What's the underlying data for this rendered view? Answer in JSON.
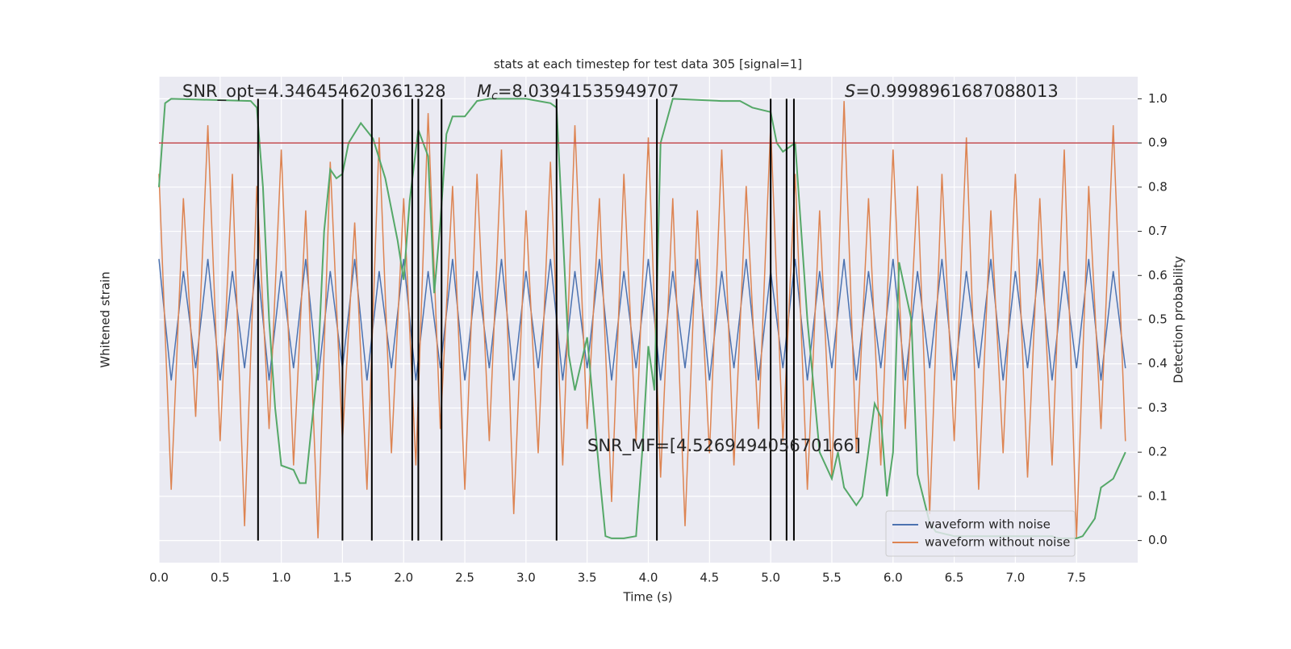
{
  "chart_data": {
    "type": "line",
    "title": "stats at each timestep for test data 305 [signal=1]",
    "xlabel": "Time (s)",
    "ylabel": "Whitened strain",
    "y2label": "Detection probability",
    "xlim": [
      0,
      8.0
    ],
    "xticks": [
      {
        "value": 0,
        "label": "0.0"
      },
      0.5,
      {
        "value": 1,
        "label": "1.0"
      },
      1.5,
      {
        "value": 2,
        "label": "2.0"
      },
      2.5,
      {
        "value": 3,
        "label": "3.0"
      },
      3.5,
      {
        "value": 4,
        "label": "4.0"
      },
      4.5,
      {
        "value": 5,
        "label": "5.0"
      },
      5.5,
      {
        "value": 6,
        "label": "6.0"
      },
      6.5,
      {
        "value": 7,
        "label": "7.0"
      },
      7.5
    ],
    "ylim": [
      -1,
      1
    ],
    "y2lim": [
      -0.05,
      1.05
    ],
    "y2ticks": [
      {
        "value": 0,
        "label": "0.0"
      },
      0.1,
      0.2,
      0.3,
      0.4,
      0.5,
      0.6,
      0.7,
      0.8,
      0.9,
      {
        "value": 1,
        "label": "1.0"
      }
    ],
    "grid": true,
    "legend": "lower right",
    "x": [
      0,
      0.1,
      0.2,
      0.3,
      0.4,
      0.5,
      0.6,
      0.7,
      0.8,
      0.9,
      1.0,
      1.1,
      1.2,
      1.3,
      1.4,
      1.5,
      1.6,
      1.7,
      1.8,
      1.9,
      2.0,
      2.1,
      2.2,
      2.3,
      2.4,
      2.5,
      2.6,
      2.7,
      2.8,
      2.9,
      3.0,
      3.1,
      3.2,
      3.3,
      3.4,
      3.5,
      3.6,
      3.7,
      3.8,
      3.9,
      4.0,
      4.1,
      4.2,
      4.3,
      4.4,
      4.5,
      4.6,
      4.7,
      4.8,
      4.9,
      5.0,
      5.1,
      5.2,
      5.3,
      5.4,
      5.5,
      5.6,
      5.7,
      5.8,
      5.9,
      6.0,
      6.1,
      6.2,
      6.3,
      6.4,
      6.5,
      6.6,
      6.7,
      6.8,
      6.9,
      7.0,
      7.1,
      7.2,
      7.3,
      7.4,
      7.5,
      7.6,
      7.7,
      7.8,
      7.9
    ],
    "series": [
      {
        "name": "waveform with noise",
        "color": "#4c72b0",
        "axis": "y",
        "values": [
          0.25,
          -0.25,
          0.2,
          -0.2,
          0.25,
          -0.25,
          0.2,
          -0.2,
          0.25,
          -0.25,
          0.2,
          -0.2,
          0.25,
          -0.25,
          0.2,
          -0.2,
          0.25,
          -0.25,
          0.2,
          -0.2,
          0.25,
          -0.25,
          0.2,
          -0.2,
          0.25,
          -0.25,
          0.2,
          -0.2,
          0.25,
          -0.25,
          0.2,
          -0.2,
          0.25,
          -0.25,
          0.2,
          -0.2,
          0.25,
          -0.25,
          0.2,
          -0.2,
          0.25,
          -0.25,
          0.2,
          -0.2,
          0.25,
          -0.25,
          0.2,
          -0.2,
          0.25,
          -0.25,
          0.2,
          -0.2,
          0.25,
          -0.25,
          0.2,
          -0.2,
          0.25,
          -0.25,
          0.2,
          -0.2,
          0.25,
          -0.25,
          0.2,
          -0.2,
          0.25,
          -0.25,
          0.2,
          -0.2,
          0.25,
          -0.25,
          0.2,
          -0.2,
          0.25,
          -0.25,
          0.2,
          -0.2,
          0.25,
          -0.25,
          0.2,
          -0.2
        ]
      },
      {
        "name": "waveform without noise",
        "color": "#dd8452",
        "axis": "y",
        "values": [
          0.6,
          -0.7,
          0.5,
          -0.4,
          0.8,
          -0.5,
          0.6,
          -0.85,
          0.55,
          -0.45,
          0.7,
          -0.6,
          0.45,
          -0.9,
          0.65,
          -0.5,
          0.4,
          -0.7,
          0.75,
          -0.55,
          0.5,
          -0.6,
          0.85,
          -0.45,
          0.55,
          -0.7,
          0.6,
          -0.5,
          0.7,
          -0.8,
          0.45,
          -0.55,
          0.65,
          -0.6,
          0.8,
          -0.45,
          0.5,
          -0.75,
          0.6,
          -0.5,
          0.75,
          -0.65,
          0.5,
          -0.85,
          0.45,
          -0.55,
          0.7,
          -0.6,
          0.55,
          -0.45,
          0.8,
          -0.5,
          0.6,
          -0.7,
          0.45,
          -0.65,
          0.9,
          -0.55,
          0.5,
          -0.6,
          0.7,
          -0.45,
          0.55,
          -0.8,
          0.6,
          -0.5,
          0.75,
          -0.7,
          0.45,
          -0.55,
          0.6,
          -0.65,
          0.5,
          -0.6,
          0.7,
          -0.9,
          0.55,
          -0.45,
          0.8,
          -0.5
        ]
      },
      {
        "color": "#55a868",
        "axis": "y2",
        "x": [
          0,
          0.05,
          0.1,
          0.75,
          0.8,
          0.85,
          0.9,
          0.95,
          1.0,
          1.1,
          1.15,
          1.2,
          1.3,
          1.35,
          1.4,
          1.45,
          1.5,
          1.55,
          1.65,
          1.75,
          1.85,
          1.95,
          2.0,
          2.05,
          2.12,
          2.2,
          2.25,
          2.3,
          2.35,
          2.4,
          2.5,
          2.6,
          2.7,
          3.0,
          3.2,
          3.25,
          3.3,
          3.35,
          3.4,
          3.45,
          3.5,
          3.6,
          3.65,
          3.7,
          3.8,
          3.9,
          3.95,
          4.0,
          4.05,
          4.1,
          4.2,
          4.6,
          4.75,
          4.85,
          5.0,
          5.05,
          5.1,
          5.2,
          5.3,
          5.4,
          5.5,
          5.55,
          5.6,
          5.7,
          5.75,
          5.85,
          5.9,
          5.95,
          6.0,
          6.05,
          6.15,
          6.2,
          6.3,
          6.35,
          6.5,
          7.0,
          7.3,
          7.35,
          7.5,
          7.55,
          7.65,
          7.7,
          7.8,
          7.9
        ],
        "values": [
          0.8,
          0.99,
          1.0,
          0.995,
          0.98,
          0.8,
          0.5,
          0.3,
          0.17,
          0.16,
          0.13,
          0.13,
          0.4,
          0.7,
          0.84,
          0.82,
          0.83,
          0.9,
          0.945,
          0.91,
          0.82,
          0.68,
          0.59,
          0.77,
          0.93,
          0.87,
          0.56,
          0.72,
          0.92,
          0.96,
          0.96,
          0.995,
          1.0,
          1.0,
          0.99,
          0.98,
          0.7,
          0.42,
          0.34,
          0.4,
          0.46,
          0.15,
          0.01,
          0.005,
          0.005,
          0.01,
          0.2,
          0.44,
          0.34,
          0.9,
          1.0,
          0.995,
          0.995,
          0.98,
          0.97,
          0.9,
          0.88,
          0.9,
          0.5,
          0.2,
          0.14,
          0.2,
          0.12,
          0.08,
          0.1,
          0.31,
          0.28,
          0.1,
          0.2,
          0.63,
          0.5,
          0.15,
          0.04,
          0.02,
          0.01,
          0.01,
          0.01,
          0.005,
          0.005,
          0.01,
          0.05,
          0.12,
          0.14,
          0.2
        ]
      }
    ],
    "threshold": 0.9,
    "threshold_color": "#c44e52",
    "vlines": [
      0.81,
      1.5,
      1.74,
      2.07,
      2.12,
      2.31,
      3.25,
      4.07,
      5.0,
      5.13,
      5.19
    ],
    "annotations": {
      "snr_opt": "SNR_opt=4.346454620361328",
      "mc_symbol": "M",
      "mc_subscript": "c",
      "mc_value": "=8.03941535949707",
      "s_symbol": "S",
      "s_value": "=0.9998961687088013",
      "snr_mf": "SNR_MF=[4.526949405670166]"
    }
  }
}
